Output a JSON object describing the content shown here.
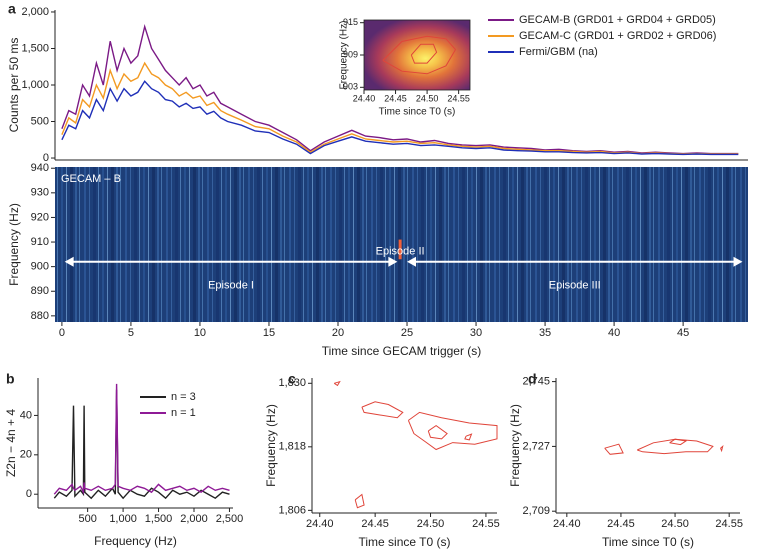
{
  "chart_data": [
    {
      "type": "line",
      "panel_label": "a",
      "ylabel": "Counts per 50 ms",
      "xlim": [
        -0.5,
        49.7
      ],
      "ylim": [
        -27,
        2027
      ],
      "yticks": [
        0,
        500,
        {
          "value": 1000,
          "label": "1,000"
        },
        {
          "value": 1500,
          "label": "1,500"
        },
        {
          "value": 2000,
          "label": "2,000"
        }
      ],
      "legend": "upper right",
      "x": [
        0,
        0.5,
        1,
        1.5,
        2,
        2.5,
        3,
        3.5,
        4,
        4.5,
        5,
        5.5,
        6,
        6.5,
        7,
        7.5,
        8,
        8.5,
        9,
        9.5,
        10,
        10.5,
        11,
        11.5,
        12,
        13,
        14,
        15,
        16,
        17,
        18,
        19,
        20,
        21,
        22,
        23,
        24,
        25,
        26,
        27,
        28,
        29,
        30,
        31,
        32,
        33,
        34,
        35,
        36,
        37,
        38,
        39,
        40,
        41,
        42,
        43,
        44,
        45,
        46,
        47,
        48,
        49
      ],
      "series": [
        {
          "name": "GECAM-B (GRD01 + GRD04 + GRD05)",
          "color": "#7b1a86",
          "values": [
            400,
            650,
            600,
            1000,
            850,
            1300,
            1000,
            1600,
            1200,
            1500,
            1300,
            1400,
            1800,
            1500,
            1350,
            1200,
            1100,
            1000,
            1100,
            950,
            1000,
            850,
            900,
            750,
            700,
            600,
            500,
            450,
            350,
            250,
            100,
            220,
            300,
            380,
            300,
            280,
            250,
            260,
            220,
            240,
            200,
            180,
            170,
            180,
            150,
            140,
            130,
            110,
            120,
            100,
            90,
            100,
            80,
            90,
            70,
            80,
            70,
            60,
            70,
            60,
            60,
            60
          ]
        },
        {
          "name": "GECAM-C (GRD01 + GRD02 + GRD06)",
          "color": "#f39a22",
          "values": [
            320,
            550,
            480,
            800,
            700,
            1000,
            820,
            1200,
            950,
            1150,
            1050,
            1100,
            1300,
            1150,
            1100,
            1000,
            950,
            850,
            900,
            820,
            850,
            720,
            760,
            650,
            600,
            520,
            430,
            400,
            300,
            220,
            80,
            190,
            260,
            330,
            260,
            240,
            220,
            230,
            200,
            210,
            180,
            160,
            150,
            160,
            130,
            120,
            110,
            100,
            100,
            90,
            80,
            90,
            70,
            80,
            60,
            70,
            60,
            55,
            60,
            55,
            55,
            55
          ]
        },
        {
          "name": "Fermi/GBM (na)",
          "color": "#1f2fb8",
          "values": [
            250,
            450,
            400,
            650,
            550,
            800,
            650,
            950,
            780,
            950,
            850,
            900,
            1050,
            950,
            900,
            800,
            780,
            700,
            750,
            680,
            700,
            600,
            640,
            550,
            500,
            450,
            370,
            350,
            260,
            190,
            60,
            170,
            230,
            290,
            230,
            210,
            190,
            200,
            170,
            180,
            160,
            140,
            130,
            140,
            110,
            100,
            95,
            85,
            85,
            75,
            70,
            75,
            60,
            70,
            55,
            60,
            55,
            50,
            55,
            50,
            50,
            50
          ]
        }
      ]
    },
    {
      "type": "contour",
      "heatmap": true,
      "color": "#e0453a",
      "xlabel": "Time since T0 (s)",
      "ylabel": "Frequency (Hz)",
      "xlim": [
        24.4,
        24.568
      ],
      "ylim": [
        902.5,
        915.5
      ],
      "xticks": [
        {
          "value": 24.4,
          "label": "24.40"
        },
        24.45,
        {
          "value": 24.5,
          "label": "24.50"
        },
        24.55
      ],
      "yticks": [
        903,
        909,
        915
      ],
      "contours": [
        {
          "x": [
            24.43,
            24.46,
            24.5,
            24.53,
            24.545,
            24.53,
            24.5,
            24.46,
            24.43
          ],
          "y": [
            908,
            911.5,
            912.5,
            912,
            910,
            907,
            905.5,
            906,
            908
          ]
        },
        {
          "x": [
            24.475,
            24.49,
            24.51,
            24.515,
            24.5,
            24.48,
            24.475
          ],
          "y": [
            909,
            911,
            911,
            909.5,
            907.5,
            907.5,
            909
          ]
        }
      ]
    },
    {
      "type": "heatmap",
      "xlabel": "Time since GECAM trigger (s)",
      "ylabel": "Frequency (Hz)",
      "xlim": [
        -0.5,
        49.7
      ],
      "ylim": [
        877.5,
        940.5
      ],
      "xticks": [
        0,
        5,
        10,
        15,
        20,
        25,
        30,
        35,
        40,
        45
      ],
      "yticks": [
        880,
        890,
        900,
        910,
        920,
        930,
        940
      ],
      "annotations": [
        "GECAM – B",
        "Episode I",
        "Episode II",
        "Episode III"
      ],
      "arrows": [
        [
          0.2,
          24.3
        ],
        [
          25,
          49.3
        ]
      ],
      "arrow_freq": 902,
      "signal": {
        "x": 24.5,
        "from": 903,
        "to": 911,
        "color": "#f0603a"
      }
    },
    {
      "type": "line",
      "panel_label": "b",
      "xlabel": "Frequency (Hz)",
      "ylabel": "Z2n − 4n + 4",
      "xlim": [
        -200,
        2550
      ],
      "ylim": [
        -7,
        59
      ],
      "xticks": [
        500,
        {
          "value": 1000,
          "label": "1,000"
        },
        {
          "value": 1500,
          "label": "1,500"
        },
        {
          "value": 2000,
          "label": "2,000"
        },
        {
          "value": 2500,
          "label": "2,500"
        }
      ],
      "yticks": [
        0,
        20,
        40
      ],
      "legend": "upper right",
      "x": [
        30,
        100,
        200,
        280,
        300,
        320,
        400,
        440,
        450,
        460,
        550,
        650,
        750,
        850,
        890,
        909,
        930,
        1000,
        1100,
        1200,
        1300,
        1400,
        1500,
        1600,
        1700,
        1800,
        1900,
        2000,
        2100,
        2200,
        2300,
        2400,
        2500
      ],
      "series": [
        {
          "name": "n = 3",
          "color": "#222222",
          "values": [
            -2,
            1,
            -1,
            2,
            45,
            -1,
            2,
            0,
            45,
            1,
            -2,
            2,
            -1,
            3,
            0,
            53,
            1,
            -2,
            2,
            0,
            -1,
            3,
            1,
            -2,
            2,
            0,
            1,
            -1,
            2,
            0,
            -2,
            1,
            0
          ]
        },
        {
          "name": "n = 1",
          "color": "#8e1a96",
          "values": [
            0,
            3,
            2,
            5,
            3,
            2,
            4,
            1,
            6,
            3,
            2,
            4,
            2,
            3,
            5,
            56,
            4,
            3,
            2,
            4,
            3,
            1,
            5,
            2,
            3,
            4,
            2,
            3,
            1,
            4,
            2,
            3,
            2
          ]
        }
      ]
    },
    {
      "type": "contour",
      "panel_label": "c",
      "color": "#e0453a",
      "xlabel": "Time since T0 (s)",
      "ylabel": "Frequency (Hz)",
      "xlim": [
        24.393,
        24.56
      ],
      "ylim": [
        1805.5,
        1831
      ],
      "xticks": [
        {
          "value": 24.4,
          "label": "24.40"
        },
        24.45,
        {
          "value": 24.5,
          "label": "24.50"
        },
        24.55
      ],
      "yticks": [
        {
          "value": 1806,
          "label": "1,806"
        },
        {
          "value": 1818,
          "label": "1,818"
        },
        {
          "value": 1830,
          "label": "1,830"
        }
      ],
      "contours": [
        {
          "x": [
            24.413,
            24.418,
            24.416,
            24.413
          ],
          "y": [
            1830,
            1830.3,
            1829.6,
            1830
          ]
        },
        {
          "x": [
            24.438,
            24.45,
            24.462,
            24.475,
            24.47,
            24.455,
            24.44,
            24.438
          ],
          "y": [
            1825.5,
            1826.5,
            1826,
            1824.5,
            1823.5,
            1824,
            1824.5,
            1825.5
          ]
        },
        {
          "x": [
            24.48,
            24.49,
            24.51,
            24.535,
            24.56,
            24.56,
            24.54,
            24.52,
            24.505,
            24.495,
            24.485,
            24.48
          ],
          "y": [
            1823,
            1824.5,
            1823.5,
            1822.5,
            1822,
            1819.5,
            1818.5,
            1818.8,
            1817.5,
            1819,
            1820.5,
            1823
          ]
        },
        {
          "x": [
            24.498,
            24.505,
            24.515,
            24.51,
            24.5,
            24.498
          ],
          "y": [
            1821,
            1822,
            1820.5,
            1819.5,
            1819.8,
            1821
          ]
        },
        {
          "x": [
            24.532,
            24.537,
            24.535,
            24.531,
            24.532
          ],
          "y": [
            1820,
            1820.4,
            1819.3,
            1819.5,
            1820
          ]
        },
        {
          "x": [
            24.432,
            24.438,
            24.44,
            24.434,
            24.432
          ],
          "y": [
            1808,
            1809,
            1807,
            1806.5,
            1808
          ]
        }
      ]
    },
    {
      "type": "contour",
      "panel_label": "d",
      "color": "#e0453a",
      "xlabel": "Time since T0 (s)",
      "ylabel": "Frequency (Hz)",
      "xlim": [
        24.39,
        24.56
      ],
      "ylim": [
        2708.5,
        2746
      ],
      "xticks": [
        {
          "value": 24.4,
          "label": "24.40"
        },
        24.45,
        {
          "value": 24.5,
          "label": "24.50"
        },
        24.55
      ],
      "yticks": [
        {
          "value": 2709,
          "label": "2,709"
        },
        {
          "value": 2727,
          "label": "2,727"
        },
        {
          "value": 2745,
          "label": "2,745"
        }
      ],
      "contours": [
        {
          "x": [
            24.435,
            24.448,
            24.452,
            24.44,
            24.435
          ],
          "y": [
            2726.5,
            2727.6,
            2725.2,
            2724.8,
            2726.5
          ]
        },
        {
          "x": [
            24.465,
            24.48,
            24.5,
            24.52,
            24.535,
            24.53,
            24.51,
            24.49,
            24.47,
            24.465
          ],
          "y": [
            2726,
            2728,
            2729,
            2728.5,
            2727,
            2725.5,
            2725.5,
            2725,
            2725.5,
            2726
          ]
        },
        {
          "x": [
            24.495,
            24.5,
            24.51,
            24.505,
            24.495
          ],
          "y": [
            2728,
            2729,
            2728.5,
            2727.5,
            2728
          ]
        },
        {
          "x": [
            24.542,
            24.544,
            24.543,
            24.542
          ],
          "y": [
            2726.5,
            2727,
            2725.8,
            2726.5
          ]
        }
      ]
    }
  ]
}
